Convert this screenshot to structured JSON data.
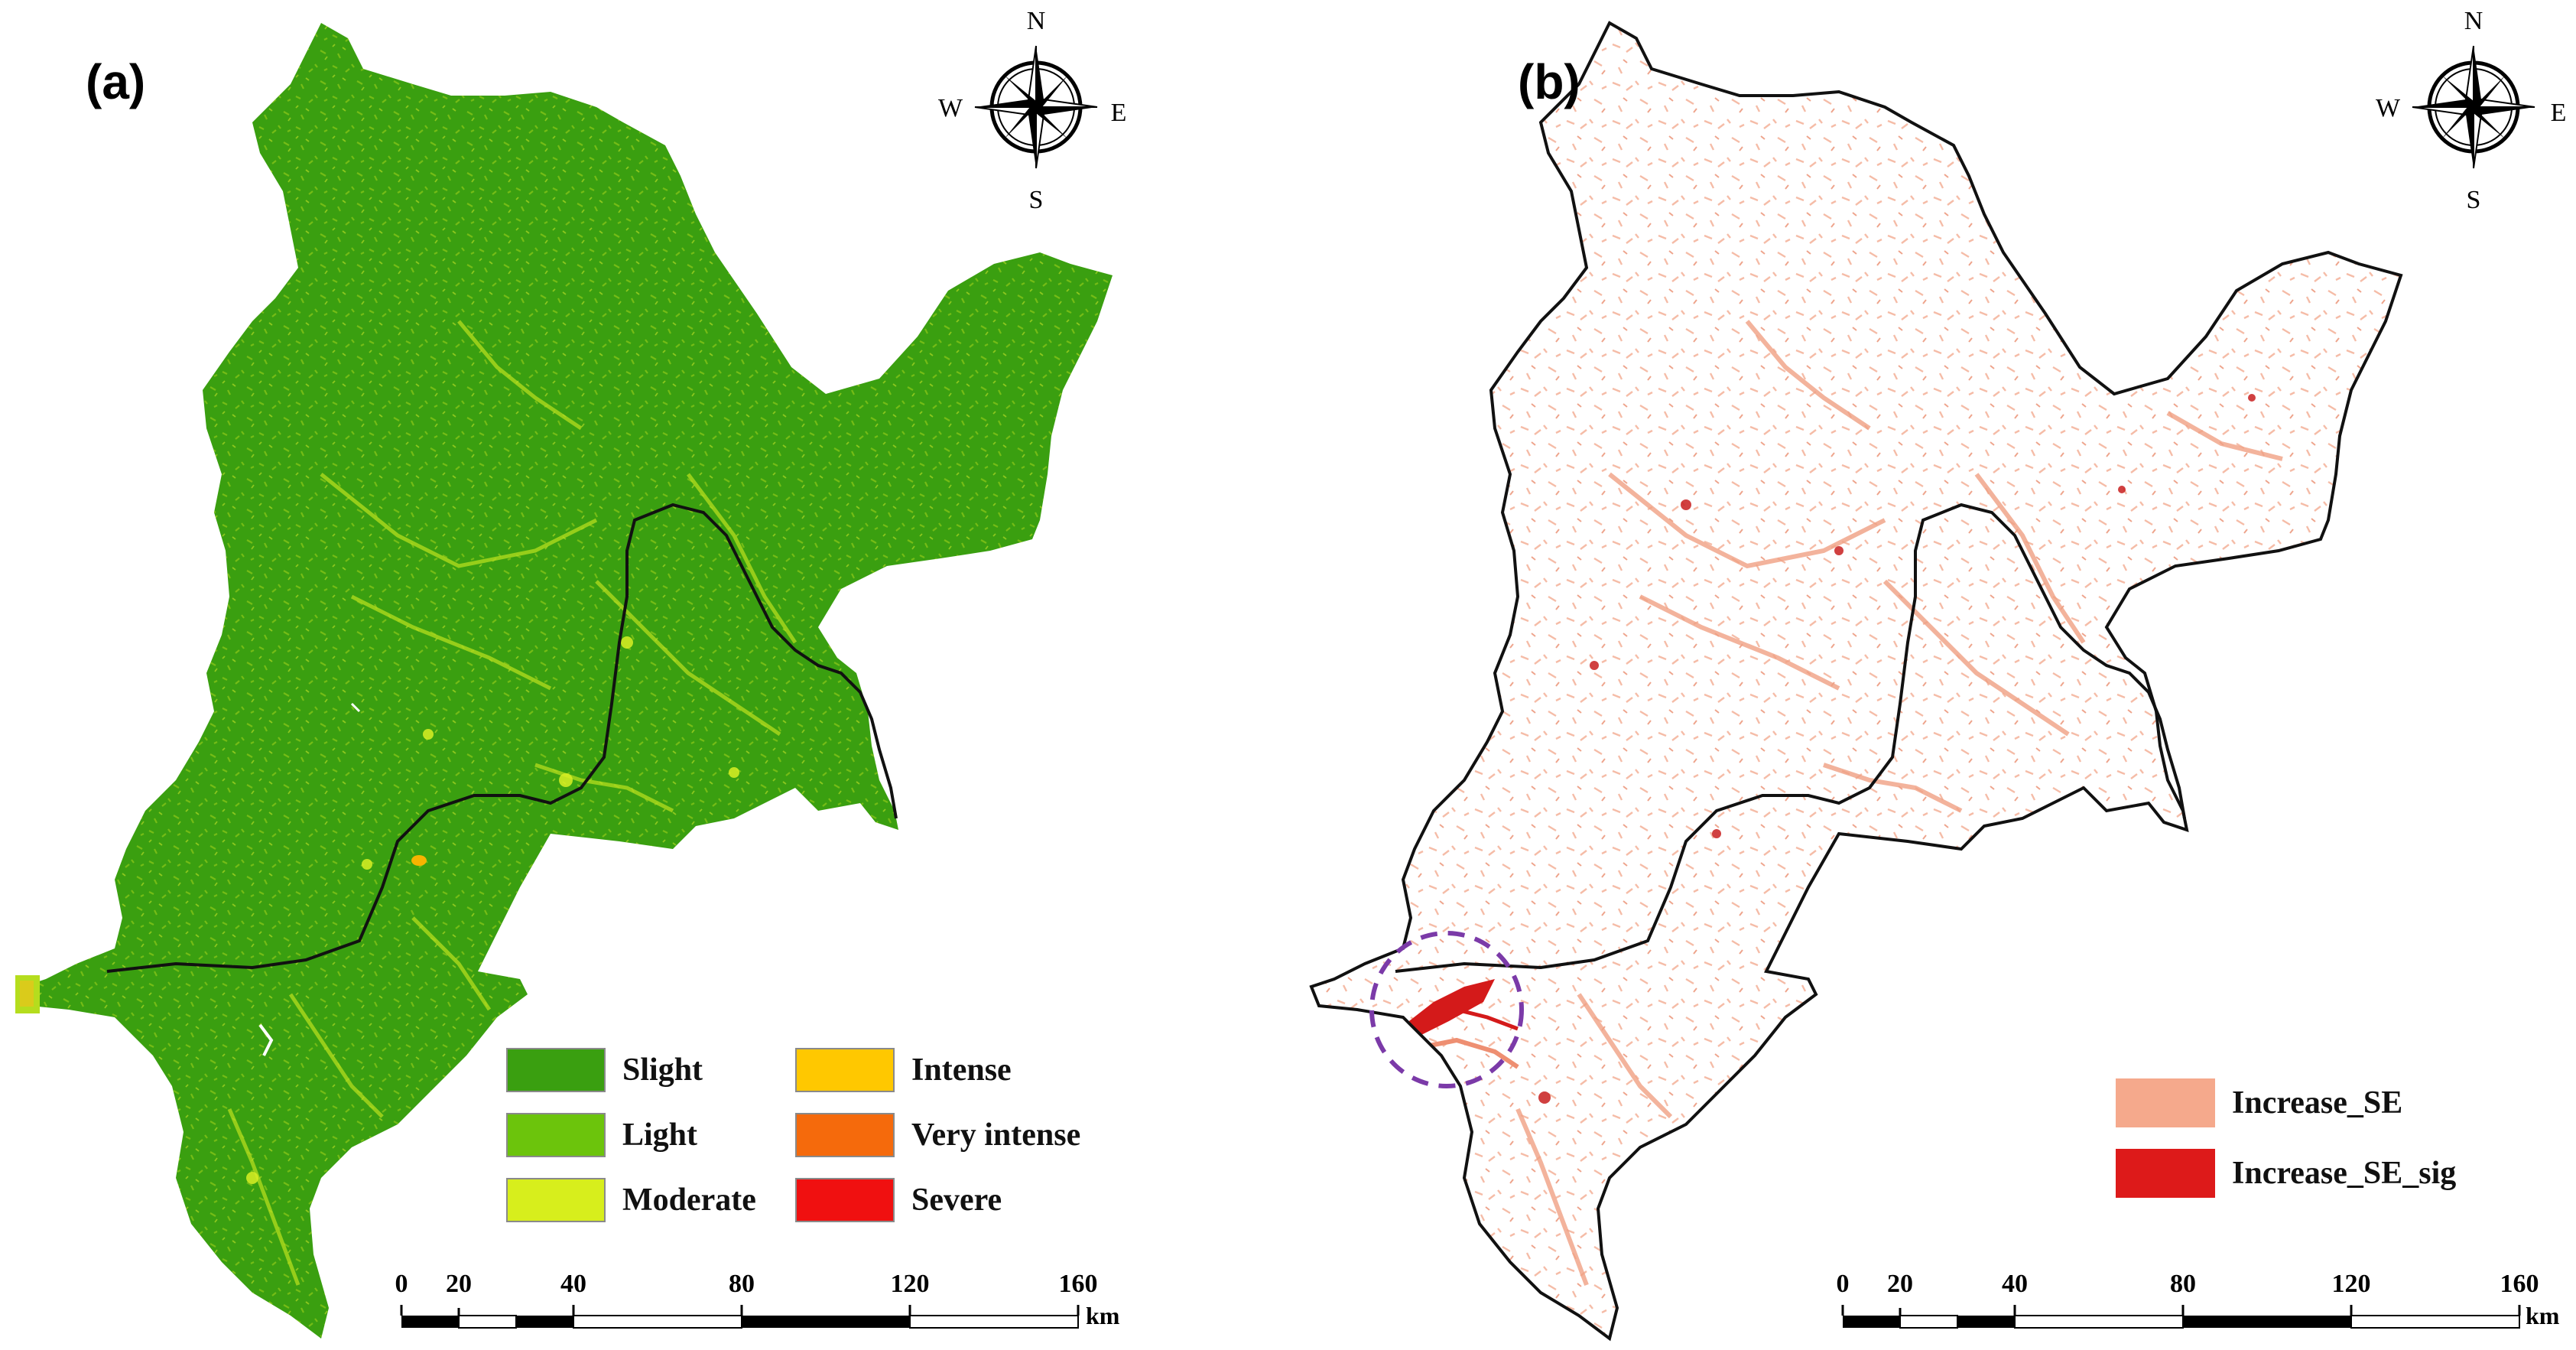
{
  "panel_a": {
    "label": "(a)",
    "compass": {
      "north": "N",
      "south": "S",
      "east": "E",
      "west": "W"
    },
    "legend": [
      {
        "label": "Slight",
        "color": "#3a9f10"
      },
      {
        "label": "Light",
        "color": "#6cc40c"
      },
      {
        "label": "Moderate",
        "color": "#d7ee1c"
      },
      {
        "label": "Intense",
        "color": "#ffc800"
      },
      {
        "label": "Very intense",
        "color": "#f56a0c"
      },
      {
        "label": "Severe",
        "color": "#f01010"
      }
    ],
    "scale": {
      "ticks": [
        "0",
        "20",
        "40",
        "80",
        "120",
        "160"
      ],
      "unit": "km"
    }
  },
  "panel_b": {
    "label": "(b)",
    "compass": {
      "north": "N",
      "south": "S",
      "east": "E",
      "west": "W"
    },
    "legend": [
      {
        "label": "Increase_SE",
        "color": "#f5a98c"
      },
      {
        "label": "Increase_SE_sig",
        "color": "#dd1a1a"
      }
    ],
    "scale": {
      "ticks": [
        "0",
        "20",
        "40",
        "80",
        "120",
        "160"
      ],
      "unit": "km"
    }
  },
  "colors": {
    "region_fill_a": "#3a9f10",
    "boundary": "#111111",
    "highlight_circle": "#7b3aa8",
    "erosion_light": "#f2a58a",
    "erosion_sig": "#c81e1e"
  }
}
